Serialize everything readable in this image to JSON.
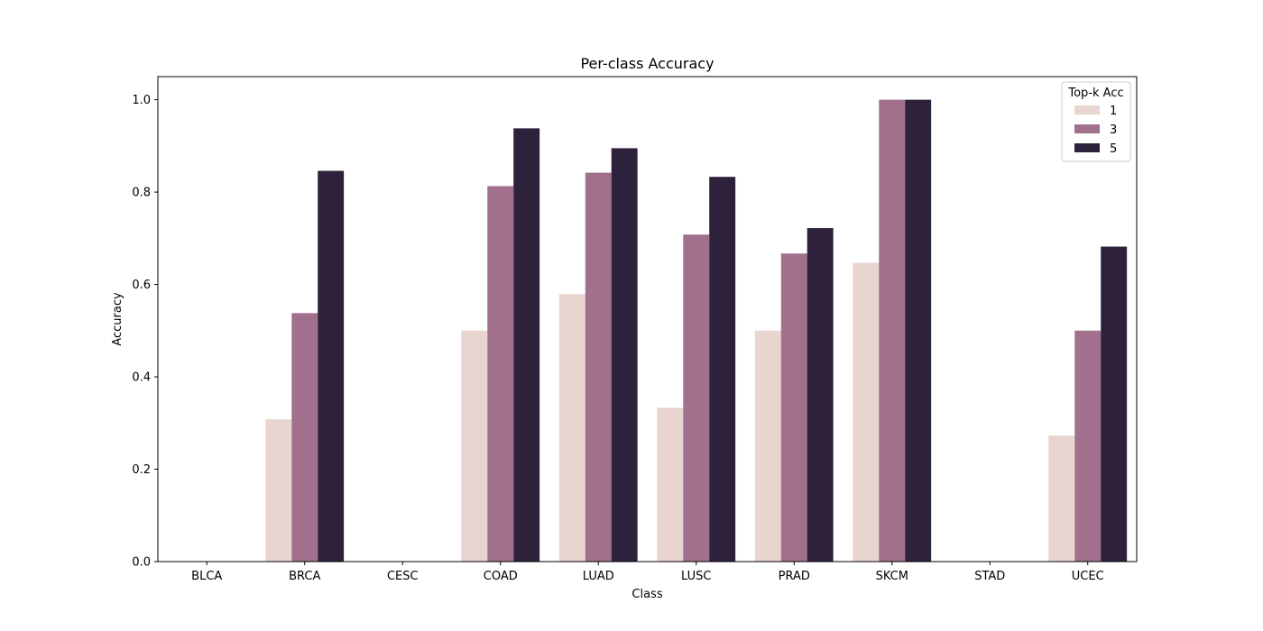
{
  "chart_data": {
    "type": "bar",
    "title": "Per-class Accuracy",
    "xlabel": "Class",
    "ylabel": "Accuracy",
    "ylim": [
      0,
      1.05
    ],
    "yticks": [
      "0.0",
      "0.2",
      "0.4",
      "0.6",
      "0.8",
      "1.0"
    ],
    "ytick_values": [
      0,
      0.2,
      0.4,
      0.6,
      0.8,
      1.0
    ],
    "categories": [
      "BLCA",
      "BRCA",
      "CESC",
      "COAD",
      "LUAD",
      "LUSC",
      "PRAD",
      "SKCM",
      "STAD",
      "UCEC"
    ],
    "legend_title": "Top-k Acc",
    "legend_position": "top-right",
    "grid": false,
    "series": [
      {
        "name": "1",
        "color": "#e9d5d0",
        "values": [
          0,
          0.308,
          0,
          0.5,
          0.579,
          0.333,
          0.5,
          0.647,
          0,
          0.273
        ]
      },
      {
        "name": "3",
        "color": "#a0708d",
        "values": [
          0,
          0.538,
          0,
          0.813,
          0.842,
          0.708,
          0.667,
          1.0,
          0,
          0.5
        ]
      },
      {
        "name": "5",
        "color": "#2e213b",
        "values": [
          0,
          0.846,
          0,
          0.938,
          0.895,
          0.833,
          0.722,
          1.0,
          0,
          0.682
        ]
      }
    ]
  }
}
